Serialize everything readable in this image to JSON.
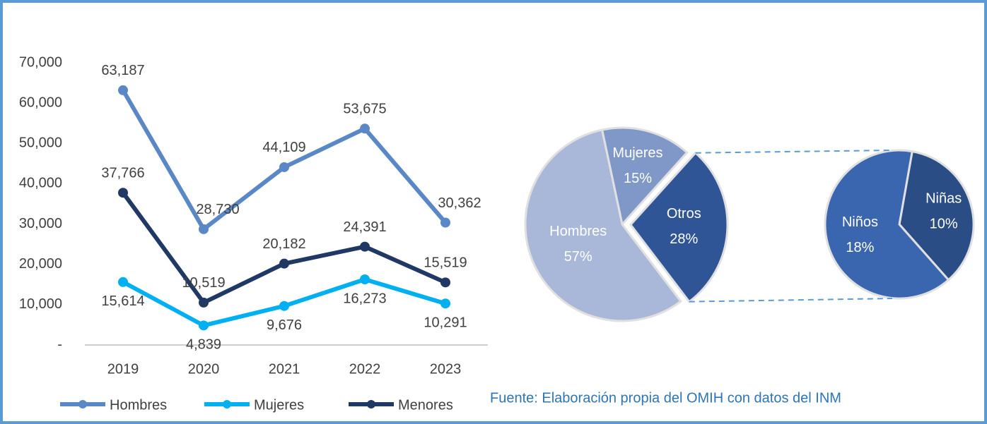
{
  "chart_data": [
    {
      "type": "line",
      "categories": [
        "2019",
        "2020",
        "2021",
        "2022",
        "2023"
      ],
      "ylim": [
        0,
        70000
      ],
      "yticks": [
        {
          "value": 0,
          "label": "-"
        },
        {
          "value": 10000,
          "label": "10,000"
        },
        {
          "value": 20000,
          "label": "20,000"
        },
        {
          "value": 30000,
          "label": "30,000"
        },
        {
          "value": 40000,
          "label": "40,000"
        },
        {
          "value": 50000,
          "label": "50,000"
        },
        {
          "value": 60000,
          "label": "60,000"
        },
        {
          "value": 70000,
          "label": "70,000"
        }
      ],
      "legend": "bottom",
      "series": [
        {
          "name": "Hombres",
          "color": "#5a87c5",
          "values": [
            63187,
            28730,
            44109,
            53675,
            30362
          ],
          "value_labels": [
            "63,187",
            "28,730",
            "44,109",
            "53,675",
            "30,362"
          ]
        },
        {
          "name": "Mujeres",
          "color": "#00b0f0",
          "values": [
            15614,
            4839,
            9676,
            16273,
            10291
          ],
          "value_labels": [
            "15,614",
            "4,839",
            "9,676",
            "16,273",
            "10,291"
          ]
        },
        {
          "name": "Menores",
          "color": "#1f3864",
          "values": [
            37766,
            10519,
            20182,
            24391,
            15519
          ],
          "value_labels": [
            "37,766",
            "10,519",
            "20,182",
            "24,391",
            "15,519"
          ]
        }
      ]
    },
    {
      "type": "pie",
      "categories": [
        "Mujeres",
        "Otros",
        "Hombres"
      ],
      "values": [
        15,
        28,
        57
      ],
      "value_labels": [
        "15%",
        "28%",
        "57%"
      ],
      "colors": [
        "#7f98c8",
        "#2f5597",
        "#a9b8d8"
      ],
      "secondary": {
        "categories": [
          "Niñas",
          "Niños"
        ],
        "values": [
          10,
          18
        ],
        "value_labels": [
          "10%",
          "18%"
        ],
        "colors": [
          "#2a4d86",
          "#3a66b0"
        ]
      }
    }
  ],
  "source": "Fuente: Elaboración propia del OMIH con datos del INM"
}
